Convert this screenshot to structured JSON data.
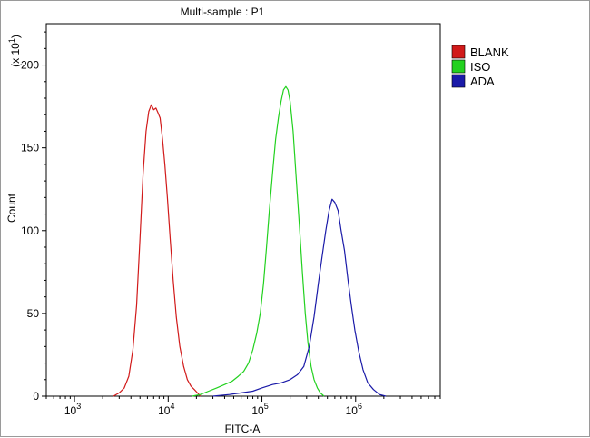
{
  "chart_data": {
    "type": "line",
    "title": "Multi-sample : P1",
    "xlabel": "FITC-A",
    "ylabel": "Count",
    "y_multiplier_label": "(x 10",
    "y_multiplier_exp": "1",
    "x_scale": "log",
    "xlim": [
      500,
      8000000
    ],
    "ylim": [
      0,
      225
    ],
    "x_ticks": [
      {
        "value": 1000,
        "base": "10",
        "exp": "3"
      },
      {
        "value": 10000,
        "base": "10",
        "exp": "4"
      },
      {
        "value": 100000,
        "base": "10",
        "exp": "5"
      },
      {
        "value": 1000000,
        "base": "10",
        "exp": "6"
      }
    ],
    "y_ticks": [
      0,
      50,
      100,
      150,
      200
    ],
    "y_tick_labels": [
      "0",
      "50",
      "100",
      "150",
      "200"
    ],
    "grid": false,
    "legend_position": "top-right",
    "series": [
      {
        "name": "BLANK",
        "color": "#d11a1a",
        "points": [
          [
            2600,
            0
          ],
          [
            3000,
            2
          ],
          [
            3400,
            5
          ],
          [
            3800,
            12
          ],
          [
            4200,
            28
          ],
          [
            4600,
            55
          ],
          [
            5000,
            95
          ],
          [
            5400,
            135
          ],
          [
            5800,
            160
          ],
          [
            6200,
            172
          ],
          [
            6600,
            176
          ],
          [
            7000,
            173
          ],
          [
            7400,
            174
          ],
          [
            7800,
            171
          ],
          [
            8200,
            168
          ],
          [
            8700,
            155
          ],
          [
            9200,
            140
          ],
          [
            9800,
            120
          ],
          [
            10500,
            95
          ],
          [
            11300,
            70
          ],
          [
            12200,
            48
          ],
          [
            13300,
            30
          ],
          [
            14600,
            18
          ],
          [
            16000,
            10
          ],
          [
            17500,
            6
          ],
          [
            19000,
            4
          ],
          [
            20500,
            2
          ],
          [
            22000,
            0
          ]
        ]
      },
      {
        "name": "ISO",
        "color": "#22d11f",
        "points": [
          [
            18000,
            0
          ],
          [
            22000,
            1
          ],
          [
            27000,
            3
          ],
          [
            33000,
            5
          ],
          [
            40000,
            7
          ],
          [
            48000,
            9
          ],
          [
            56000,
            12
          ],
          [
            64000,
            15
          ],
          [
            72000,
            20
          ],
          [
            80000,
            28
          ],
          [
            88000,
            38
          ],
          [
            96000,
            50
          ],
          [
            104000,
            68
          ],
          [
            112000,
            90
          ],
          [
            120000,
            112
          ],
          [
            130000,
            135
          ],
          [
            140000,
            155
          ],
          [
            150000,
            168
          ],
          [
            160000,
            178
          ],
          [
            170000,
            185
          ],
          [
            180000,
            187
          ],
          [
            190000,
            185
          ],
          [
            200000,
            178
          ],
          [
            215000,
            160
          ],
          [
            230000,
            135
          ],
          [
            250000,
            105
          ],
          [
            270000,
            75
          ],
          [
            290000,
            50
          ],
          [
            310000,
            32
          ],
          [
            335000,
            18
          ],
          [
            360000,
            10
          ],
          [
            390000,
            5
          ],
          [
            420000,
            2
          ],
          [
            460000,
            0
          ]
        ]
      },
      {
        "name": "ADA",
        "color": "#1a1aa8",
        "points": [
          [
            30000,
            0
          ],
          [
            45000,
            1
          ],
          [
            60000,
            2
          ],
          [
            80000,
            3
          ],
          [
            100000,
            5
          ],
          [
            130000,
            7
          ],
          [
            160000,
            8
          ],
          [
            200000,
            10
          ],
          [
            240000,
            13
          ],
          [
            280000,
            18
          ],
          [
            320000,
            30
          ],
          [
            360000,
            48
          ],
          [
            400000,
            68
          ],
          [
            440000,
            85
          ],
          [
            480000,
            100
          ],
          [
            520000,
            112
          ],
          [
            560000,
            119
          ],
          [
            600000,
            117
          ],
          [
            650000,
            112
          ],
          [
            700000,
            100
          ],
          [
            760000,
            88
          ],
          [
            830000,
            70
          ],
          [
            900000,
            55
          ],
          [
            980000,
            40
          ],
          [
            1080000,
            27
          ],
          [
            1200000,
            16
          ],
          [
            1350000,
            8
          ],
          [
            1550000,
            4
          ],
          [
            1800000,
            1
          ],
          [
            2100000,
            0
          ]
        ]
      }
    ]
  }
}
